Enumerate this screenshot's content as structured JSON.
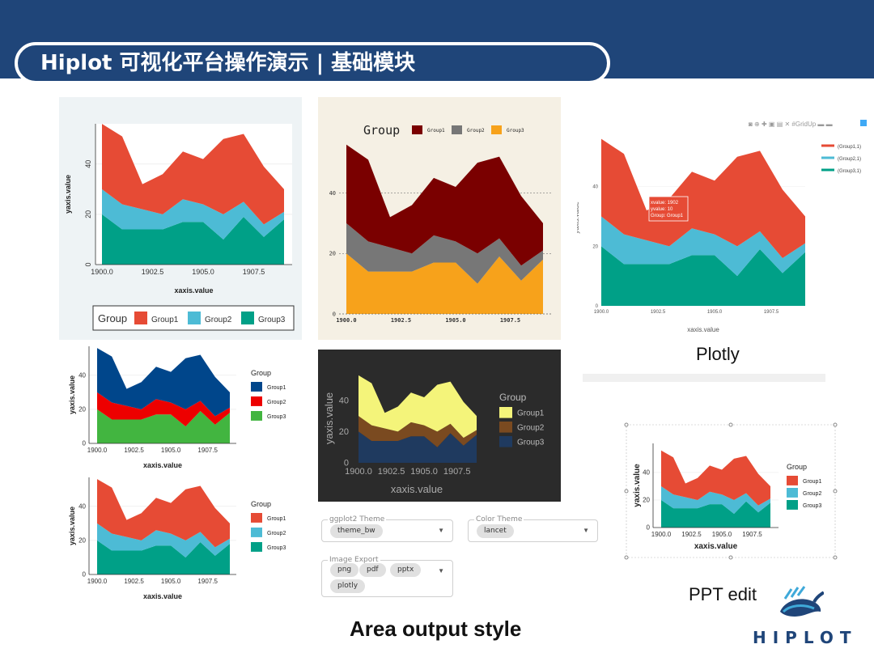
{
  "slide": {
    "title": "Hiplot 可视化平台操作演示 | 基础模块"
  },
  "chart_data": {
    "type": "area",
    "stacked": true,
    "xlabel": "xaxis.value",
    "ylabel": "yaxis.value",
    "x": [
      1900,
      1901,
      1902,
      1903,
      1904,
      1905,
      1906,
      1907,
      1908,
      1909
    ],
    "series": [
      {
        "name": "Group3",
        "values": [
          20,
          14,
          14,
          14,
          17,
          17,
          10,
          19,
          11,
          18
        ]
      },
      {
        "name": "Group2",
        "values": [
          10,
          10,
          8,
          6,
          9,
          7,
          10,
          6,
          5,
          3
        ]
      },
      {
        "name": "Group1",
        "values": [
          26,
          27,
          10,
          16,
          19,
          18,
          30,
          27,
          23,
          9
        ]
      }
    ],
    "xticks": [
      "1900.0",
      "1902.5",
      "1905.0",
      "1907.5"
    ],
    "xtick_values": [
      1900,
      1902.5,
      1905,
      1907.5
    ],
    "yticks": [
      "0",
      "20",
      "40"
    ],
    "ytick_values": [
      0,
      20,
      40
    ],
    "ylim": [
      0,
      57
    ],
    "legend_title": "Group",
    "legend_items": [
      "Group1",
      "Group2",
      "Group3"
    ],
    "plotly_legend_items": [
      "(Group1,1)",
      "(Group2,1)",
      "(Group3,1)"
    ],
    "tooltip": [
      "xvalue: 1902",
      "yvalue: 10",
      "Group: Group1"
    ],
    "plotly_toolbar": [
      "camera-icon",
      "zoom-icon",
      "pan-icon",
      "zoom-in-icon",
      "zoom-out-icon",
      "reset-icon",
      "#GridUp",
      "menu-icon",
      "chart-icon"
    ]
  },
  "themes": {
    "bw": {
      "colors": [
        "#00a087",
        "#4dbbd5",
        "#e64b35"
      ]
    },
    "lancet": {
      "colors": [
        "#00468b",
        "#ed0000",
        "#42b540"
      ]
    },
    "tan": {
      "colors": [
        "#f7a21b",
        "#777777",
        "#7a0000"
      ]
    },
    "dark": {
      "colors": [
        "#1f3a5f",
        "#7a4a20",
        "#f4f47a"
      ]
    }
  },
  "controls": {
    "theme": {
      "legend": "ggplot2 Theme",
      "value": "theme_bw"
    },
    "color": {
      "legend": "Color Theme",
      "value": "lancet"
    },
    "export": {
      "legend": "Image Export",
      "options": [
        "png",
        "pdf",
        "pptx",
        "plotly"
      ]
    }
  },
  "captions": {
    "plotly": "Plotly",
    "ppt": "PPT edit",
    "main": "Area output style"
  },
  "logo": {
    "text": "HIPLOT"
  }
}
